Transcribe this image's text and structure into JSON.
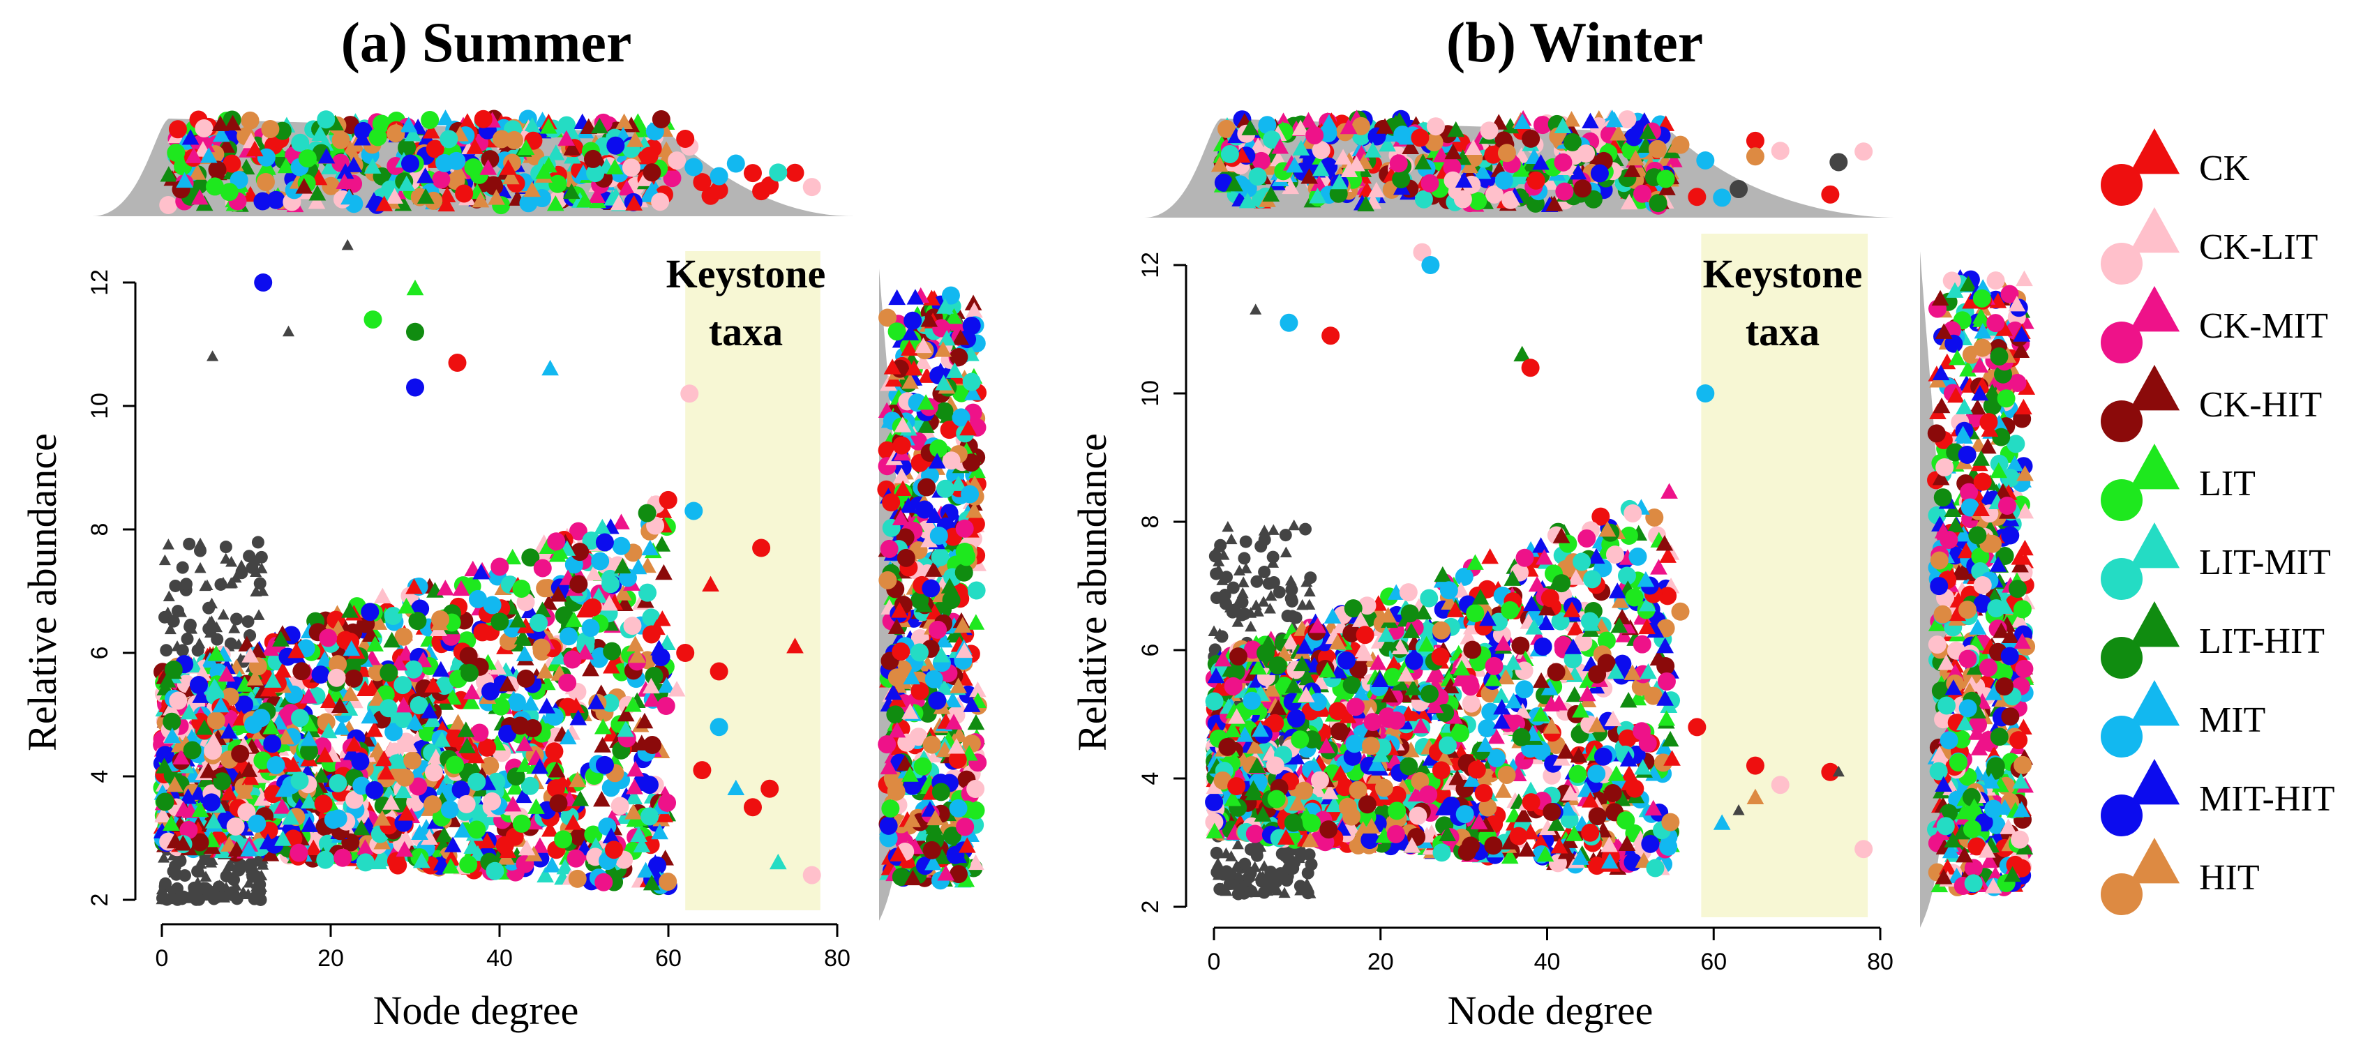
{
  "chart_data": [
    {
      "type": "scatter",
      "title": "(a) Summer",
      "xlabel": "Node degree",
      "ylabel": "Relative abundance",
      "xlim": [
        0,
        80
      ],
      "ylim": [
        2,
        12
      ],
      "xticks": [
        "0",
        "20",
        "40",
        "60",
        "80"
      ],
      "yticks": [
        "2",
        "4",
        "6",
        "8",
        "10",
        "12"
      ],
      "keystone": {
        "label_line1": "Keystone",
        "label_line2": "taxa",
        "x_range": [
          62,
          78
        ]
      },
      "dense_cloud": {
        "x_range": [
          0,
          60
        ],
        "y_range": [
          2.2,
          8.5
        ],
        "points": 1800
      },
      "background_points": {
        "x_range": [
          0,
          12
        ],
        "y_range": [
          2,
          7.8
        ],
        "points": 320
      },
      "highlighted_points": [
        {
          "x": 62.5,
          "y": 10.2,
          "group": "CK-LIT"
        },
        {
          "x": 62,
          "y": 6,
          "group": "CK"
        },
        {
          "x": 65,
          "y": 7.1,
          "group": "CK"
        },
        {
          "x": 66,
          "y": 5.7,
          "group": "CK"
        },
        {
          "x": 71,
          "y": 7.7,
          "group": "CK"
        },
        {
          "x": 75,
          "y": 6.1,
          "group": "CK"
        },
        {
          "x": 64,
          "y": 4.1,
          "group": "CK"
        },
        {
          "x": 66,
          "y": 4.8,
          "group": "MIT"
        },
        {
          "x": 68,
          "y": 3.8,
          "group": "MIT"
        },
        {
          "x": 70,
          "y": 3.5,
          "group": "CK"
        },
        {
          "x": 72,
          "y": 3.8,
          "group": "CK"
        },
        {
          "x": 73,
          "y": 2.6,
          "group": "LIT-MIT"
        },
        {
          "x": 77,
          "y": 2.4,
          "group": "CK-LIT"
        },
        {
          "x": 63,
          "y": 8.3,
          "group": "MIT"
        },
        {
          "x": 61,
          "y": 5.4,
          "group": "CK-LIT"
        },
        {
          "x": 58,
          "y": 6.3,
          "group": "CK"
        },
        {
          "x": 12,
          "y": 12,
          "group": "MIT-HIT"
        },
        {
          "x": 30,
          "y": 11.9,
          "group": "LIT"
        },
        {
          "x": 22,
          "y": 12.6,
          "group": "background"
        },
        {
          "x": 15,
          "y": 11.2,
          "group": "background"
        },
        {
          "x": 6,
          "y": 10.8,
          "group": "background"
        },
        {
          "x": 30,
          "y": 11.2,
          "group": "LIT-HIT"
        },
        {
          "x": 25,
          "y": 11.4,
          "group": "LIT"
        },
        {
          "x": 46,
          "y": 10.6,
          "group": "MIT"
        },
        {
          "x": 30,
          "y": 10.3,
          "group": "MIT-HIT"
        },
        {
          "x": 35,
          "y": 10.7,
          "group": "CK"
        }
      ]
    },
    {
      "type": "scatter",
      "title": "(b) Winter",
      "xlabel": "Node degree",
      "ylabel": "Relative abundance",
      "xlim": [
        0,
        80
      ],
      "ylim": [
        2,
        12
      ],
      "xticks": [
        "0",
        "20",
        "40",
        "60",
        "80"
      ],
      "yticks": [
        "2",
        "4",
        "6",
        "8",
        "10",
        "12"
      ],
      "keystone": {
        "label_line1": "Keystone",
        "label_line2": "taxa",
        "x_range": [
          58.5,
          78.5
        ]
      },
      "dense_cloud": {
        "x_range": [
          0,
          55
        ],
        "y_range": [
          2.5,
          8.5
        ],
        "points": 1700
      },
      "background_points": {
        "x_range": [
          0,
          12
        ],
        "y_range": [
          2.2,
          8
        ],
        "points": 320
      },
      "highlighted_points": [
        {
          "x": 59,
          "y": 10,
          "group": "MIT"
        },
        {
          "x": 58,
          "y": 4.8,
          "group": "CK"
        },
        {
          "x": 61,
          "y": 3.3,
          "group": "MIT"
        },
        {
          "x": 63,
          "y": 3.5,
          "group": "background"
        },
        {
          "x": 65,
          "y": 4.2,
          "group": "CK"
        },
        {
          "x": 65,
          "y": 3.7,
          "group": "HIT"
        },
        {
          "x": 68,
          "y": 3.9,
          "group": "CK-LIT"
        },
        {
          "x": 74,
          "y": 4.1,
          "group": "CK"
        },
        {
          "x": 75,
          "y": 4.1,
          "group": "background"
        },
        {
          "x": 78,
          "y": 2.9,
          "group": "CK-LIT"
        },
        {
          "x": 56,
          "y": 6.6,
          "group": "HIT"
        },
        {
          "x": 55,
          "y": 4.3,
          "group": "CK"
        },
        {
          "x": 25,
          "y": 12.2,
          "group": "CK-LIT"
        },
        {
          "x": 26,
          "y": 12,
          "group": "MIT"
        },
        {
          "x": 5,
          "y": 11.3,
          "group": "background"
        },
        {
          "x": 9,
          "y": 11.1,
          "group": "MIT"
        },
        {
          "x": 14,
          "y": 10.9,
          "group": "CK"
        },
        {
          "x": 37,
          "y": 10.6,
          "group": "LIT-HIT"
        },
        {
          "x": 38,
          "y": 10.4,
          "group": "CK"
        }
      ]
    }
  ],
  "legend": {
    "items": [
      {
        "label": "CK",
        "color": "#ee0f0f"
      },
      {
        "label": "CK-LIT",
        "color": "#ffc0cb"
      },
      {
        "label": "CK-MIT",
        "color": "#ee1289"
      },
      {
        "label": "CK-HIT",
        "color": "#8b0a0a"
      },
      {
        "label": "LIT",
        "color": "#1ee81e"
      },
      {
        "label": "LIT-MIT",
        "color": "#24dcc4"
      },
      {
        "label": "LIT-HIT",
        "color": "#108c10"
      },
      {
        "label": "MIT",
        "color": "#12b8f0"
      },
      {
        "label": "MIT-HIT",
        "color": "#0c0cee"
      },
      {
        "label": "HIT",
        "color": "#dd8a42"
      }
    ]
  },
  "colors": {
    "background_points": "#444444",
    "keystone_band": "#f7f7d4",
    "keystone_label": "#ff00ff",
    "density": "#b5b5b5"
  }
}
